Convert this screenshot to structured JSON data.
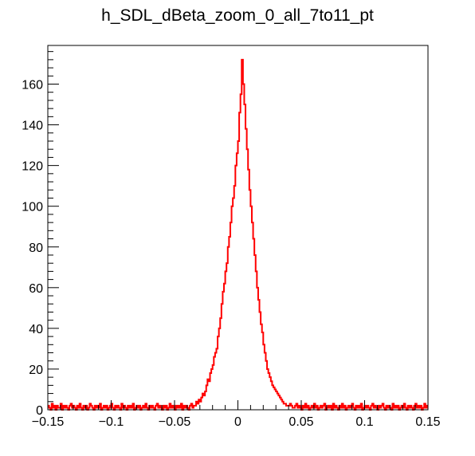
{
  "chart_data": {
    "type": "histogram",
    "title": "h_SDL_dBeta_zoom_0_all_7to11_pt",
    "xlabel": "",
    "ylabel": "",
    "xlim": [
      -0.15,
      0.15
    ],
    "ylim": [
      0,
      179
    ],
    "line_color": "#ff0000",
    "x_ticks": [
      -0.15,
      -0.1,
      -0.05,
      0,
      0.05,
      0.1,
      0.15
    ],
    "x_tick_labels": [
      "−0.15",
      "−0.1",
      "−0.05",
      "0",
      "0.05",
      "0.1",
      "0.15"
    ],
    "y_ticks": [
      0,
      20,
      40,
      60,
      80,
      100,
      120,
      140,
      160
    ],
    "y_tick_labels": [
      "0",
      "20",
      "40",
      "60",
      "80",
      "100",
      "120",
      "140",
      "160"
    ],
    "bins": {
      "x_start": -0.15,
      "bin_width": 0.001,
      "values": [
        2,
        1,
        0,
        3,
        1,
        2,
        0,
        2,
        1,
        1,
        3,
        0,
        2,
        1,
        2,
        1,
        0,
        2,
        3,
        1,
        2,
        1,
        0,
        2,
        1,
        3,
        1,
        0,
        2,
        1,
        2,
        0,
        1,
        3,
        2,
        1,
        0,
        2,
        1,
        2,
        1,
        3,
        0,
        1,
        2,
        1,
        2,
        0,
        1,
        2,
        3,
        1,
        0,
        2,
        1,
        2,
        1,
        0,
        3,
        1,
        2,
        1,
        0,
        2,
        1,
        2,
        1,
        3,
        0,
        1,
        2,
        1,
        2,
        0,
        1,
        2,
        1,
        3,
        1,
        0,
        2,
        1,
        2,
        1,
        0,
        2,
        3,
        1,
        2,
        1,
        0,
        2,
        1,
        2,
        0,
        1,
        3,
        1,
        2,
        1,
        0,
        2,
        1,
        2,
        1,
        3,
        0,
        2,
        1,
        2,
        1,
        0,
        2,
        3,
        1,
        2,
        2,
        4,
        3,
        5,
        4,
        6,
        8,
        7,
        9,
        12,
        15,
        14,
        18,
        20,
        22,
        26,
        28,
        30,
        36,
        40,
        45,
        52,
        58,
        62,
        68,
        72,
        80,
        85,
        92,
        100,
        104,
        110,
        120,
        126,
        132,
        146,
        155,
        172,
        160,
        150,
        138,
        128,
        118,
        108,
        100,
        92,
        84,
        76,
        68,
        60,
        54,
        48,
        42,
        38,
        32,
        28,
        24,
        20,
        18,
        16,
        14,
        12,
        11,
        10,
        9,
        8,
        7,
        6,
        5,
        4,
        3,
        3,
        2,
        2,
        2,
        3,
        2,
        1,
        1,
        2,
        3,
        1,
        2,
        1,
        0,
        2,
        1,
        3,
        1,
        2,
        0,
        1,
        2,
        1,
        3,
        1,
        2,
        0,
        1,
        2,
        1,
        2,
        3,
        0,
        1,
        2,
        1,
        2,
        0,
        3,
        1,
        2,
        1,
        0,
        2,
        1,
        3,
        1,
        2,
        0,
        1,
        2,
        1,
        2,
        3,
        1,
        0,
        2,
        1,
        2,
        1,
        3,
        0,
        1,
        2,
        1,
        2,
        1,
        0,
        2,
        3,
        1,
        2,
        1,
        0,
        2,
        1,
        2,
        3,
        1,
        0,
        2,
        1,
        2,
        1,
        0,
        3,
        1,
        2,
        1,
        2,
        0,
        1,
        2,
        1,
        3,
        1,
        0,
        2,
        1,
        2,
        1,
        0,
        2,
        3,
        1,
        2,
        1,
        2,
        0,
        1,
        3,
        1,
        2
      ]
    }
  }
}
